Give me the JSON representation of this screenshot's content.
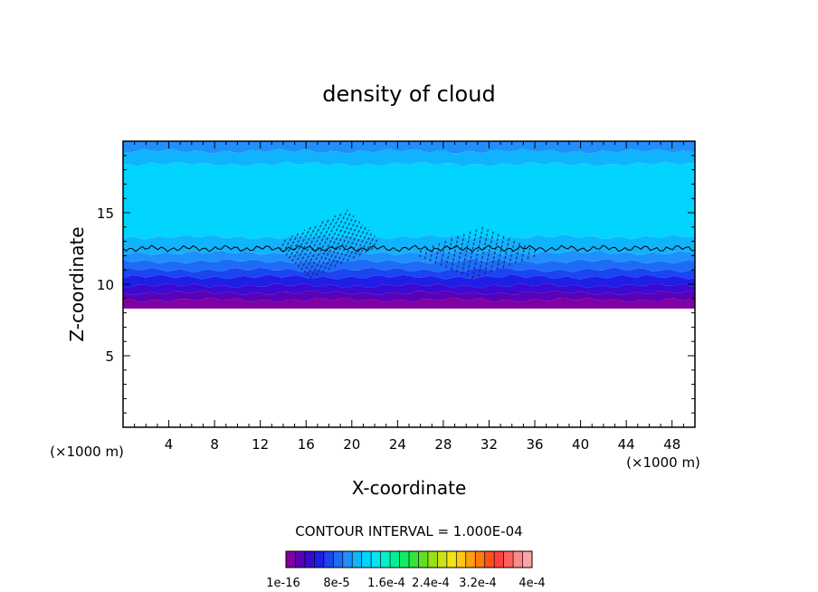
{
  "chart_data": {
    "type": "heatmap",
    "title": "density of cloud",
    "xlabel": "X-coordinate",
    "ylabel": "Z-coordinate",
    "xunit_left": "(×1000 m)",
    "xunit_right": "(×1000 m)",
    "xlim": [
      0,
      50
    ],
    "ylim": [
      0,
      20
    ],
    "xticks": [
      4,
      8,
      12,
      16,
      20,
      24,
      28,
      32,
      36,
      40,
      44,
      48
    ],
    "yticks": [
      5,
      10,
      15
    ],
    "contour_interval": "CONTOUR INTERVAL = 1.000E-04",
    "colorbar": {
      "tick_labels": [
        "1e-16",
        "8e-5",
        "1.6e-4",
        "2.4e-4",
        "3.2e-4",
        "4e-4"
      ],
      "colors": [
        "#8000a0",
        "#5b00b8",
        "#3a0ad0",
        "#1e1ee6",
        "#1a45f0",
        "#1e6cf6",
        "#1f90fb",
        "#10b4fd",
        "#00d4ff",
        "#00e8f0",
        "#00f2c8",
        "#00f09a",
        "#10ec66",
        "#30e63a",
        "#60e020",
        "#98e018",
        "#c8e414",
        "#f0e412",
        "#ffc810",
        "#ffa010",
        "#ff7814",
        "#ff5018",
        "#ff4040",
        "#ff6060",
        "#ff8888",
        "#ffa4a4"
      ]
    },
    "field_bands": [
      {
        "z_bottom": 8.3,
        "z_top": 8.9,
        "color": "#8000a0"
      },
      {
        "z_bottom": 8.9,
        "z_top": 9.4,
        "color": "#5b00b8"
      },
      {
        "z_bottom": 9.4,
        "z_top": 9.9,
        "color": "#3a0ad0"
      },
      {
        "z_bottom": 9.9,
        "z_top": 10.5,
        "color": "#1e1ee6"
      },
      {
        "z_bottom": 10.5,
        "z_top": 11.0,
        "color": "#1a45f0"
      },
      {
        "z_bottom": 11.0,
        "z_top": 11.6,
        "color": "#1e6cf6"
      },
      {
        "z_bottom": 11.6,
        "z_top": 12.2,
        "color": "#1f90fb"
      },
      {
        "z_bottom": 12.2,
        "z_top": 13.3,
        "color": "#10b4fd"
      },
      {
        "z_bottom": 13.3,
        "z_top": 18.4,
        "color": "#00d4ff"
      },
      {
        "z_bottom": 18.4,
        "z_top": 19.3,
        "color": "#10b4fd"
      },
      {
        "z_bottom": 19.3,
        "z_top": 20.0,
        "color": "#1f90fb"
      }
    ],
    "contour_level_z": 12.5,
    "wave_regions": [
      {
        "x_center": 18,
        "z_center": 12.8,
        "x_halfwidth": 4,
        "z_halfwidth": 2.4
      },
      {
        "x_center": 31,
        "z_center": 12.2,
        "x_halfwidth": 5,
        "z_halfwidth": 1.8
      }
    ]
  }
}
